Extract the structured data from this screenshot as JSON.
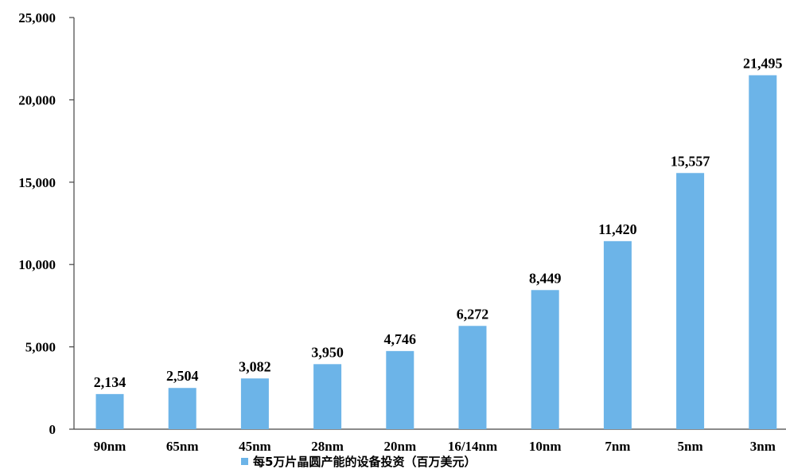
{
  "chart_data": {
    "type": "bar",
    "title": "",
    "xlabel": "",
    "ylabel": "",
    "categories": [
      "90nm",
      "65nm",
      "45nm",
      "28nm",
      "20nm",
      "16/14nm",
      "10nm",
      "7nm",
      "5nm",
      "3nm"
    ],
    "series": [
      {
        "name": "每5万片晶圆产能的设备投资（百万美元）",
        "values": [
          2134,
          2504,
          3082,
          3950,
          4746,
          6272,
          8449,
          11420,
          15557,
          21495
        ],
        "data_labels": [
          "2,134",
          "2,504",
          "3,082",
          "3,950",
          "4,746",
          "6,272",
          "8,449",
          "11,420",
          "15,557",
          "21,495"
        ],
        "color": "#6cb4e8"
      }
    ],
    "ylim": [
      0,
      25000
    ],
    "yticks": [
      0,
      5000,
      10000,
      15000,
      20000,
      25000
    ],
    "ytick_labels": [
      "0",
      "5,000",
      "10,000",
      "15,000",
      "20,000",
      "25,000"
    ],
    "grid": false,
    "legend_position": "bottom"
  }
}
